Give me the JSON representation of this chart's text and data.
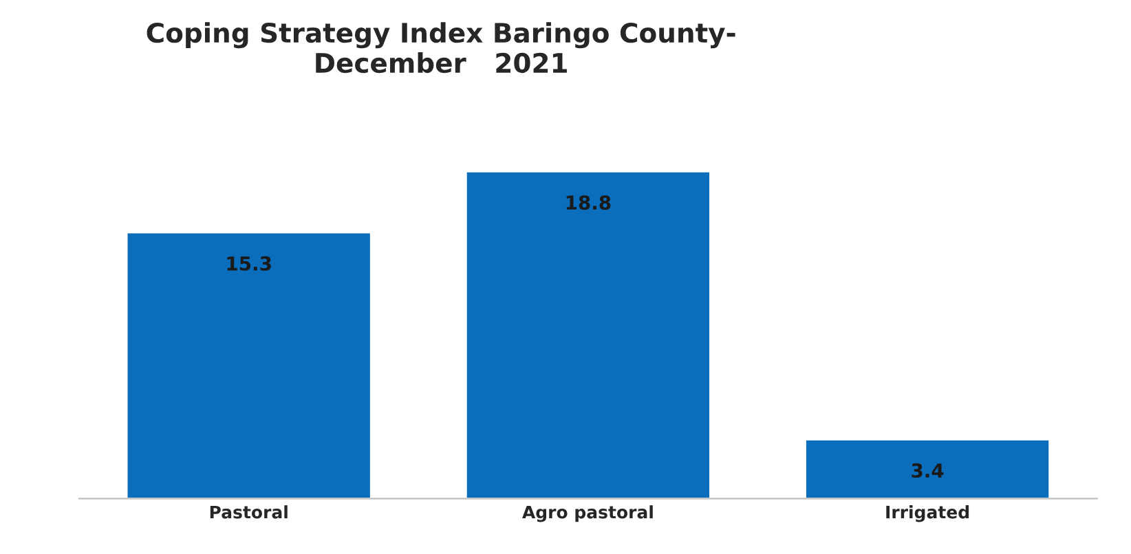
{
  "chart_data": {
    "type": "bar",
    "title": "Coping Strategy Index Baringo County-\nDecember   2021",
    "categories": [
      "Pastoral",
      "Agro pastoral",
      "Irrigated"
    ],
    "values": [
      15.3,
      18.8,
      3.4
    ],
    "color": "#0a6ebd",
    "data_labels": true,
    "grid": false,
    "legend": false
  }
}
